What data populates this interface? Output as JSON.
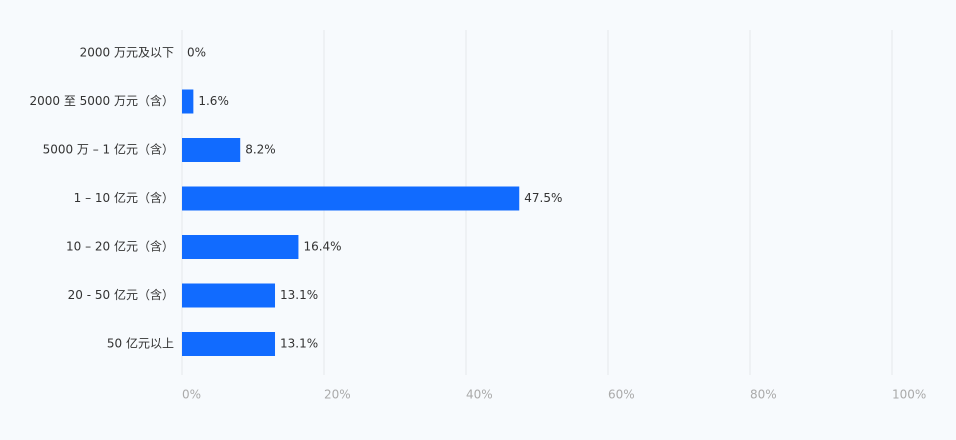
{
  "chart_data": {
    "type": "bar",
    "orientation": "horizontal",
    "categories": [
      "2000 万元及以下",
      "2000 至 5000 万元（含）",
      "5000 万 – 1 亿元（含）",
      "1 – 10 亿元（含）",
      "10 – 20 亿元（含）",
      "20 - 50 亿元（含）",
      "50 亿元以上"
    ],
    "values": [
      0,
      1.6,
      8.2,
      47.5,
      16.4,
      13.1,
      13.1
    ],
    "value_labels": [
      "0%",
      "1.6%",
      "8.2%",
      "47.5%",
      "16.4%",
      "13.1%",
      "13.1%"
    ],
    "x_ticks": [
      0,
      20,
      40,
      60,
      80,
      100
    ],
    "x_tick_labels": [
      "0%",
      "20%",
      "40%",
      "60%",
      "80%",
      "100%"
    ],
    "xlim": [
      0,
      100
    ],
    "grid": true,
    "bar_color": "#116bff",
    "title": "",
    "xlabel": "",
    "ylabel": ""
  }
}
